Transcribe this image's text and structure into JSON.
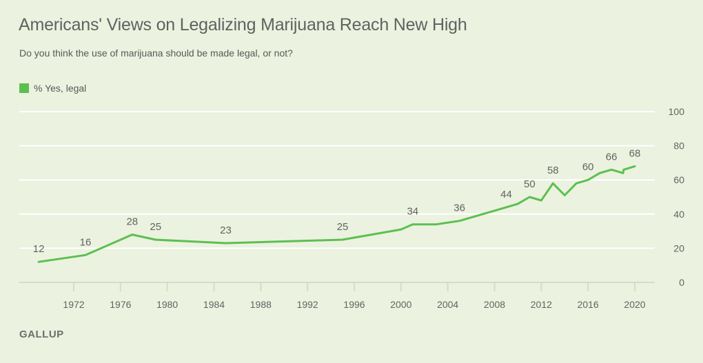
{
  "chart_data": {
    "type": "line",
    "title": "Americans' Views on Legalizing Marijuana Reach New High",
    "subtitle": "Do you think the use of marijuana should be made legal, or not?",
    "xlabel": "",
    "ylabel": "",
    "ylim": [
      0,
      100
    ],
    "xlim": [
      1968,
      2021.5
    ],
    "y_ticks": [
      0,
      20,
      40,
      60,
      80,
      100
    ],
    "x_ticks": [
      1972,
      1976,
      1980,
      1984,
      1988,
      1992,
      1996,
      2000,
      2004,
      2008,
      2012,
      2016,
      2020
    ],
    "grid": true,
    "y_axis_position": "right",
    "legend_position": "top-left",
    "series": [
      {
        "name": "% Yes, legal",
        "color": "#5cbf50",
        "points": [
          {
            "x": 1969,
            "y": 12,
            "label": "12"
          },
          {
            "x": 1973,
            "y": 16,
            "label": "16"
          },
          {
            "x": 1977,
            "y": 28,
            "label": "28"
          },
          {
            "x": 1979,
            "y": 25,
            "label": "25"
          },
          {
            "x": 1985,
            "y": 23,
            "label": "23"
          },
          {
            "x": 1995,
            "y": 25,
            "label": "25"
          },
          {
            "x": 2000,
            "y": 31,
            "label": ""
          },
          {
            "x": 2001,
            "y": 34,
            "label": "34"
          },
          {
            "x": 2003,
            "y": 34,
            "label": ""
          },
          {
            "x": 2005,
            "y": 36,
            "label": "36"
          },
          {
            "x": 2009,
            "y": 44,
            "label": "44"
          },
          {
            "x": 2010,
            "y": 46,
            "label": ""
          },
          {
            "x": 2011,
            "y": 50,
            "label": "50"
          },
          {
            "x": 2012,
            "y": 48,
            "label": ""
          },
          {
            "x": 2013,
            "y": 58,
            "label": "58"
          },
          {
            "x": 2014,
            "y": 51,
            "label": ""
          },
          {
            "x": 2015,
            "y": 58,
            "label": ""
          },
          {
            "x": 2016,
            "y": 60,
            "label": "60"
          },
          {
            "x": 2017,
            "y": 64,
            "label": ""
          },
          {
            "x": 2018,
            "y": 66,
            "label": "66"
          },
          {
            "x": 2019,
            "y": 64,
            "label": ""
          },
          {
            "x": 2019.05,
            "y": 66,
            "label": ""
          },
          {
            "x": 2020,
            "y": 68,
            "label": "68"
          }
        ]
      }
    ]
  },
  "legend": {
    "label": "% Yes, legal",
    "color": "#5cbf50"
  },
  "source": "GALLUP"
}
